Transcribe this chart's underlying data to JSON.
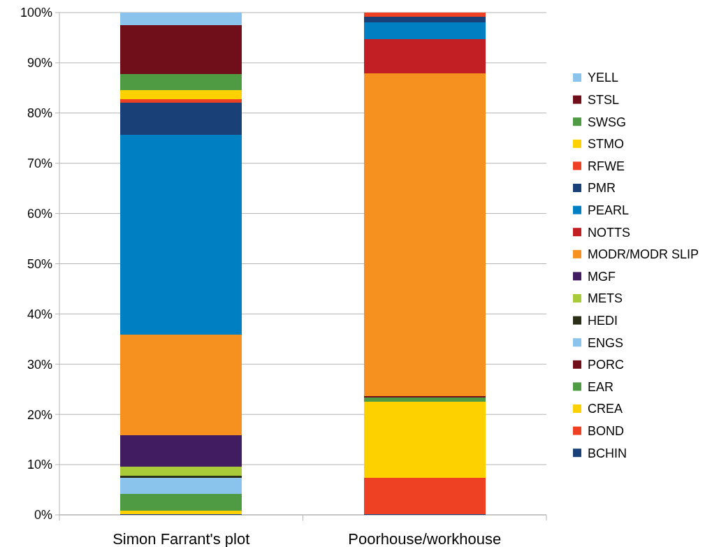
{
  "chart_data": {
    "type": "bar",
    "stacked": true,
    "categories": [
      "Simon Farrant's plot",
      "Poorhouse/workhouse"
    ],
    "ylim": [
      0,
      100
    ],
    "yticks": [
      {
        "value": 0,
        "label": "0%"
      },
      {
        "value": 10,
        "label": "10%"
      },
      {
        "value": 20,
        "label": "20%"
      },
      {
        "value": 30,
        "label": "30%"
      },
      {
        "value": 40,
        "label": "40%"
      },
      {
        "value": 50,
        "label": "50%"
      },
      {
        "value": 60,
        "label": "60%"
      },
      {
        "value": 70,
        "label": "70%"
      },
      {
        "value": 80,
        "label": "80%"
      },
      {
        "value": 90,
        "label": "90%"
      },
      {
        "value": 100,
        "label": "100%"
      }
    ],
    "grid": "y",
    "legend": "right",
    "series": [
      {
        "name": "BCHIN",
        "color": "#1a4177",
        "values": [
          0.2,
          0.2
        ]
      },
      {
        "name": "BOND",
        "color": "#ee4023",
        "values": [
          0,
          7.2
        ]
      },
      {
        "name": "CREA",
        "color": "#fdd000",
        "values": [
          0.7,
          15.1
        ]
      },
      {
        "name": "EAR",
        "color": "#4f9b43",
        "values": [
          3.3,
          0.9
        ]
      },
      {
        "name": "PORC",
        "color": "#700e19",
        "values": [
          0,
          0.3
        ]
      },
      {
        "name": "ENGS",
        "color": "#8ac4ec",
        "values": [
          3.2,
          0
        ]
      },
      {
        "name": "HEDI",
        "color": "#2a2e17",
        "values": [
          0.4,
          0
        ]
      },
      {
        "name": "METS",
        "color": "#a9cb3a",
        "values": [
          1.8,
          0
        ]
      },
      {
        "name": "MGF",
        "color": "#421c60",
        "values": [
          6.3,
          0
        ]
      },
      {
        "name": "MODR/MODR SLIP",
        "color": "#f6911f",
        "values": [
          20.0,
          64.2
        ]
      },
      {
        "name": "NOTTS",
        "color": "#c21f25",
        "values": [
          0,
          6.8
        ]
      },
      {
        "name": "PEARL",
        "color": "#007fc3",
        "values": [
          39.8,
          3.4
        ]
      },
      {
        "name": "PMR",
        "color": "#1a4177",
        "values": [
          6.4,
          1.1
        ]
      },
      {
        "name": "RFWE",
        "color": "#ee4023",
        "values": [
          0.7,
          0.8
        ]
      },
      {
        "name": "STMO",
        "color": "#fdd000",
        "values": [
          1.8,
          0
        ]
      },
      {
        "name": "SWSG",
        "color": "#4f9b43",
        "values": [
          3.2,
          0
        ]
      },
      {
        "name": "STSL",
        "color": "#700e19",
        "values": [
          9.7,
          0
        ]
      },
      {
        "name": "YELL",
        "color": "#8ac4ec",
        "values": [
          2.5,
          0
        ]
      }
    ]
  }
}
